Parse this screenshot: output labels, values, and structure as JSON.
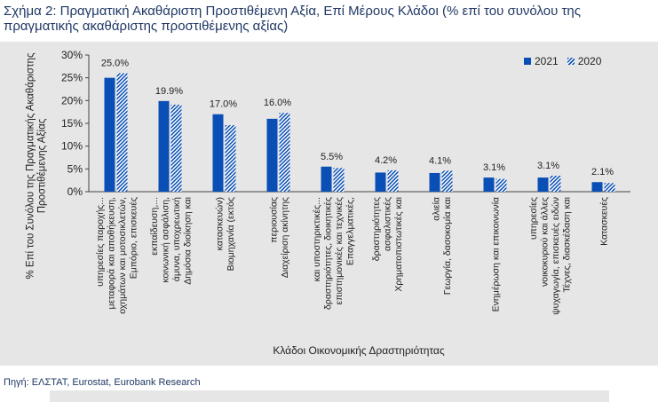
{
  "title": "Σχήμα 2: Πραγματική Ακαθάριστη Προστιθέμενη Αξία, Επί Μέρους Κλάδοι (% επί του συνόλου της πραγματικής ακαθάριστης προστιθέμενης αξίας)",
  "source": "Πηγή: ΕΛΣΤΑΤ, Eurostat, Eurobank Research",
  "colors": {
    "bar": "#0a4fb5",
    "panel": "#e6e6e6",
    "title": "#1f3864"
  },
  "chart_data": {
    "type": "bar",
    "categories": [
      [
        "Εμπόριο, επισκευές",
        "οχημάτων και μοτοσικλετών,",
        "μεταφορά και αποθήκευση,",
        "υπηρεσίες παροχής..."
      ],
      [
        "Δημόσια διοίκηση και",
        "άμυνα, υποχρεωτική",
        "κοινωνική ασφάλιση,",
        "εκπαίδευση,..."
      ],
      [
        "Βιομηχανία (εκτός",
        "κατασκευών)"
      ],
      [
        "Διαχείριση ακίνητης",
        "περιουσίας"
      ],
      [
        "Επαγγελματικές,",
        "επιστημονικές και τεχνικές",
        "δραστηριότητες, διοικητικές",
        "και υποστηρικτικές..."
      ],
      [
        "Χρηματοπιστωτικές και",
        "ασφαλιστικές",
        "δραστηριότητες"
      ],
      [
        "Γεωργία, δασοκομία και",
        "αλιεία"
      ],
      [
        "Ενημέρωση και επικοινωνία"
      ],
      [
        "Τέχνες, διασκέδαση και",
        "ψυχαγωγία, επισκευές ειδών",
        "νοικοκυριού και άλλες",
        "υπηρεσίες"
      ],
      [
        "Κατασκευές"
      ]
    ],
    "series": [
      {
        "name": "2021",
        "values": [
          25.0,
          19.9,
          17.0,
          16.0,
          5.5,
          4.2,
          4.1,
          3.1,
          3.1,
          2.1
        ]
      },
      {
        "name": "2020",
        "values": [
          26.0,
          19.1,
          14.6,
          17.3,
          5.2,
          4.7,
          4.6,
          2.8,
          3.5,
          1.9
        ]
      }
    ],
    "data_labels": [
      "25.0%",
      "19.9%",
      "17.0%",
      "16.0%",
      "5.5%",
      "4.2%",
      "4.1%",
      "3.1%",
      "3.1%",
      "2.1%"
    ],
    "ylim": [
      0,
      30
    ],
    "yticks": [
      "0%",
      "5%",
      "10%",
      "15%",
      "20%",
      "25%",
      "30%"
    ],
    "ylabel": [
      "% Επί του Συνόλου της Πραγματικής Ακαθάριστης",
      "Προστιθέμενης Αξίας"
    ],
    "xlabel": "Κλάδοι Οικονομικής Δραστηριότητας",
    "legend_position": "top-right"
  }
}
